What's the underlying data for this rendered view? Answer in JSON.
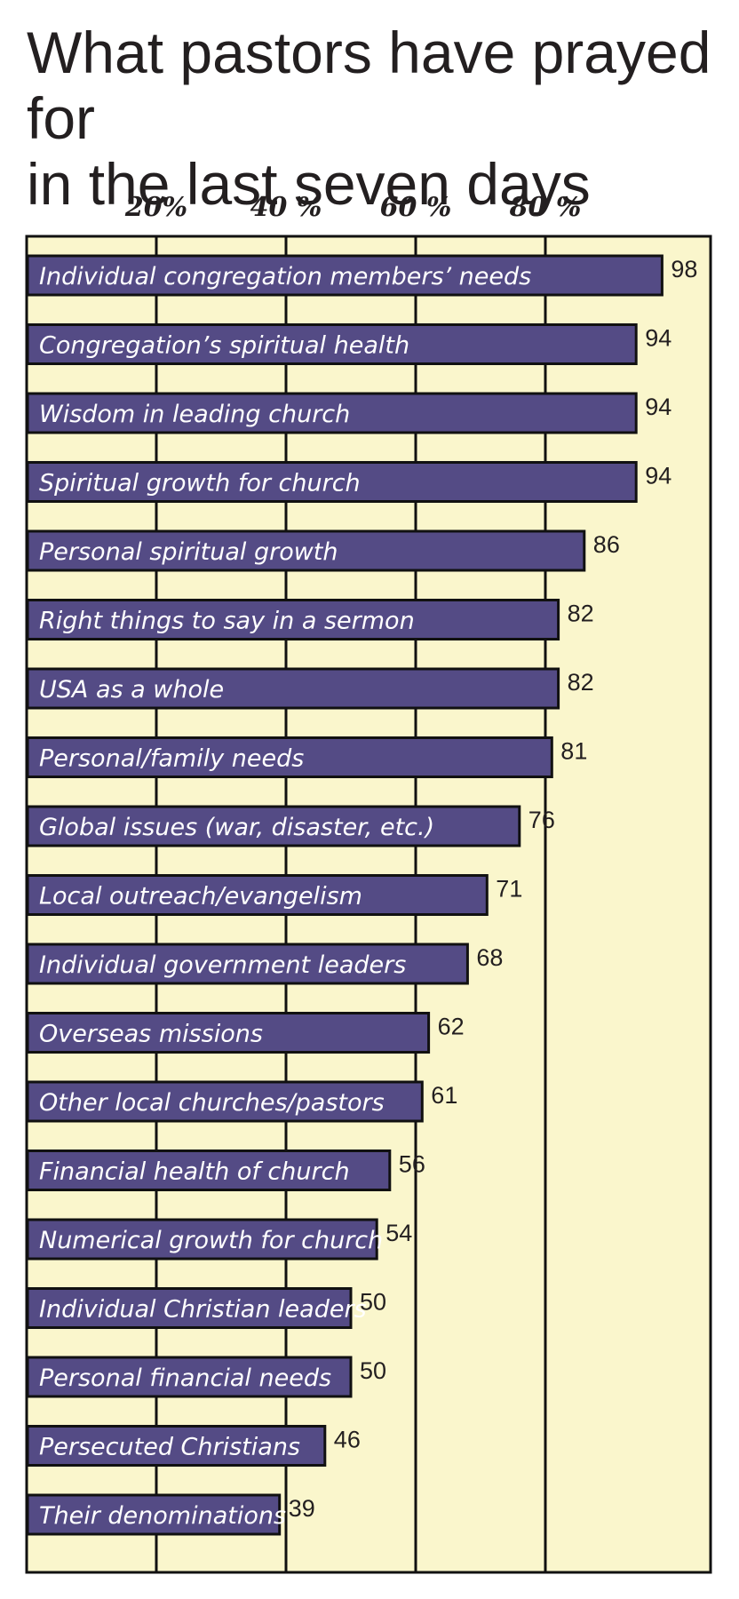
{
  "title_lines": [
    "What pastors have prayed for",
    "in the last seven days"
  ],
  "colors": {
    "background": "#faf6cc",
    "bar": "#544b85",
    "bar_stroke": "#111111",
    "gridline": "#111111",
    "text": "#231f20",
    "bar_text": "#ffffff"
  },
  "chart_data": {
    "type": "bar",
    "orientation": "horizontal",
    "title": "What pastors have prayed for in the last seven days",
    "xlabel": "",
    "ylabel": "",
    "xlim": [
      0,
      100
    ],
    "ticks": [
      {
        "value": 20,
        "label": "20%"
      },
      {
        "value": 40,
        "label": "40 %"
      },
      {
        "value": 60,
        "label": "60 %"
      },
      {
        "value": 80,
        "label": "80 %"
      }
    ],
    "grid": true,
    "categories": [
      "Individual congregation members’ needs",
      "Congregation’s spiritual health",
      "Wisdom in leading church",
      "Spiritual growth for church",
      "Personal spiritual growth",
      "Right things to say in a sermon",
      "USA as a whole",
      "Personal/family needs",
      "Global issues (war, disaster, etc.)",
      "Local outreach/evangelism",
      "Individual government leaders",
      "Overseas missions",
      "Other local churches/pastors",
      "Financial health of church",
      "Numerical growth for church",
      "Individual Christian leaders",
      "Personal financial needs",
      "Persecuted Christians",
      "Their denominations"
    ],
    "values": [
      98,
      94,
      94,
      94,
      86,
      82,
      82,
      81,
      76,
      71,
      68,
      62,
      61,
      56,
      54,
      50,
      50,
      46,
      39
    ]
  }
}
